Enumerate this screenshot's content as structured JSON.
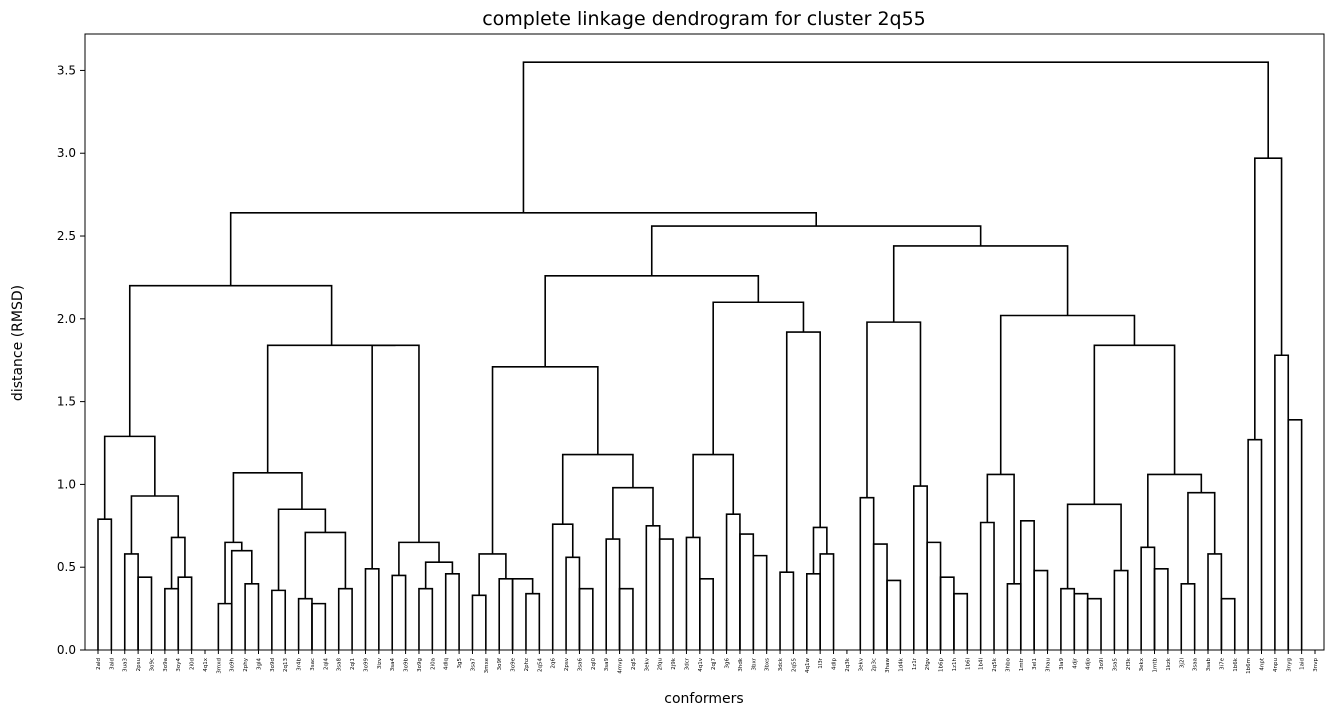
{
  "chart_data": {
    "type": "dendrogram",
    "title": "complete linkage dendrogram for cluster 2q55",
    "xlabel": "conformers",
    "ylabel": "distance (RMSD)",
    "ylim": [
      0,
      3.72
    ],
    "yticks": [
      "0.0",
      "0.5",
      "1.0",
      "1.5",
      "2.0",
      "2.5",
      "3.0",
      "3.5"
    ],
    "leaves": [
      "2ald",
      "3ald",
      "3ua3",
      "2psu",
      "3o9c",
      "3o9a",
      "3oy4",
      "2i0d",
      "4q1x",
      "3mxd",
      "3o9h",
      "2phy",
      "3gl4",
      "3o9d",
      "2q13",
      "3r4b",
      "3sac",
      "2ql4",
      "3sa8",
      "2ql1",
      "3o99",
      "3izv",
      "3sa4",
      "3o9b",
      "3o9g",
      "2i0a",
      "4dlq",
      "3g5",
      "3sa7",
      "3mxe",
      "3o9f",
      "3o9e",
      "2phz",
      "2q54",
      "2q6",
      "2psv",
      "3sa6",
      "2ql0",
      "3sa9",
      "4mvp",
      "2ql5",
      "3ekv",
      "2fqu",
      "2j9k",
      "3dcr",
      "4q1v",
      "2qj7",
      "3g6",
      "3hdk",
      "3bxr",
      "3bxs",
      "3dck",
      "2q55",
      "4q1w",
      "1l3r",
      "4dlp",
      "2q3k",
      "3ekv",
      "2p3c",
      "3haw",
      "1d4k",
      "1z1r",
      "2fgv",
      "1b6p",
      "1z1h",
      "1b6l",
      "1b4l",
      "2q5k",
      "3hbo",
      "1mtr",
      "3el1",
      "3hau",
      "3la9",
      "4djr",
      "4djo",
      "3o9l",
      "3sa5",
      "2f3k",
      "3ekx",
      "1mtb",
      "1kzk",
      "3j2l",
      "3saa",
      "3sab",
      "3i7e",
      "1b6k",
      "1b6m",
      "4npt",
      "4npu",
      "3nyg",
      "1aid",
      "3nvp"
    ],
    "links": [
      [
        0,
        1,
        0.79
      ],
      [
        2,
        3,
        0.58
      ],
      [
        3,
        4,
        0.44
      ],
      [
        5,
        6,
        0.37
      ],
      [
        6,
        7,
        0.44
      ],
      [
        5,
        6,
        0.68
      ],
      [
        2,
        5,
        0.93
      ],
      [
        0,
        2,
        1.29
      ],
      [
        9,
        10,
        0.28
      ],
      [
        11,
        12,
        0.4
      ],
      [
        10,
        11,
        0.6
      ],
      [
        9,
        10,
        0.65
      ],
      [
        13,
        14,
        0.36
      ],
      [
        15,
        16,
        0.31
      ],
      [
        16,
        17,
        0.28
      ],
      [
        18,
        19,
        0.37
      ],
      [
        15,
        18,
        0.71
      ],
      [
        13,
        15,
        0.85
      ],
      [
        9,
        13,
        1.07
      ],
      [
        20,
        21,
        0.49
      ],
      [
        22,
        23,
        0.45
      ],
      [
        24,
        25,
        0.37
      ],
      [
        26,
        27,
        0.46
      ],
      [
        24,
        26,
        0.53
      ],
      [
        22,
        24,
        0.65
      ],
      [
        20,
        22,
        1.84
      ],
      [
        9,
        20,
        1.84
      ],
      [
        0,
        9,
        2.2
      ],
      [
        28,
        29,
        0.33
      ],
      [
        30,
        31,
        0.43
      ],
      [
        32,
        33,
        0.34
      ],
      [
        31,
        32,
        0.43
      ],
      [
        28,
        30,
        0.58
      ],
      [
        35,
        36,
        0.56
      ],
      [
        36,
        37,
        0.37
      ],
      [
        34,
        35,
        0.76
      ],
      [
        38,
        39,
        0.67
      ],
      [
        39,
        40,
        0.37
      ],
      [
        41,
        42,
        0.75
      ],
      [
        42,
        43,
        0.67
      ],
      [
        38,
        41,
        0.98
      ],
      [
        34,
        38,
        1.18
      ],
      [
        28,
        34,
        1.71
      ],
      [
        44,
        45,
        0.68
      ],
      [
        45,
        46,
        0.43
      ],
      [
        47,
        48,
        0.82
      ],
      [
        48,
        49,
        0.7
      ],
      [
        49,
        50,
        0.57
      ],
      [
        44,
        47,
        1.18
      ],
      [
        51,
        52,
        0.47
      ],
      [
        53,
        54,
        0.46
      ],
      [
        54,
        55,
        0.58
      ],
      [
        53,
        54,
        0.74
      ],
      [
        51,
        53,
        1.92
      ],
      [
        44,
        51,
        2.1
      ],
      [
        28,
        44,
        2.26
      ],
      [
        57,
        58,
        0.92
      ],
      [
        58,
        59,
        0.64
      ],
      [
        59,
        60,
        0.42
      ],
      [
        61,
        62,
        0.99
      ],
      [
        62,
        63,
        0.65
      ],
      [
        63,
        64,
        0.44
      ],
      [
        64,
        65,
        0.34
      ],
      [
        57,
        61,
        1.98
      ],
      [
        66,
        67,
        0.77
      ],
      [
        68,
        69,
        0.4
      ],
      [
        69,
        70,
        0.78
      ],
      [
        70,
        71,
        0.48
      ],
      [
        66,
        68,
        1.06
      ],
      [
        72,
        73,
        0.37
      ],
      [
        73,
        74,
        0.34
      ],
      [
        74,
        75,
        0.31
      ],
      [
        76,
        77,
        0.48
      ],
      [
        72,
        76,
        0.88
      ],
      [
        78,
        79,
        0.62
      ],
      [
        79,
        80,
        0.49
      ],
      [
        81,
        82,
        0.4
      ],
      [
        83,
        84,
        0.58
      ],
      [
        84,
        85,
        0.31
      ],
      [
        81,
        83,
        0.95
      ],
      [
        78,
        81,
        1.06
      ],
      [
        72,
        78,
        1.84
      ],
      [
        66,
        72,
        2.02
      ],
      [
        57,
        66,
        2.44
      ],
      [
        28,
        57,
        2.56
      ],
      [
        0,
        28,
        2.64
      ],
      [
        86,
        87,
        1.27
      ],
      [
        88,
        89,
        1.78
      ],
      [
        89,
        90,
        1.39
      ],
      [
        86,
        88,
        2.97
      ],
      [
        0,
        86,
        3.55
      ]
    ]
  }
}
